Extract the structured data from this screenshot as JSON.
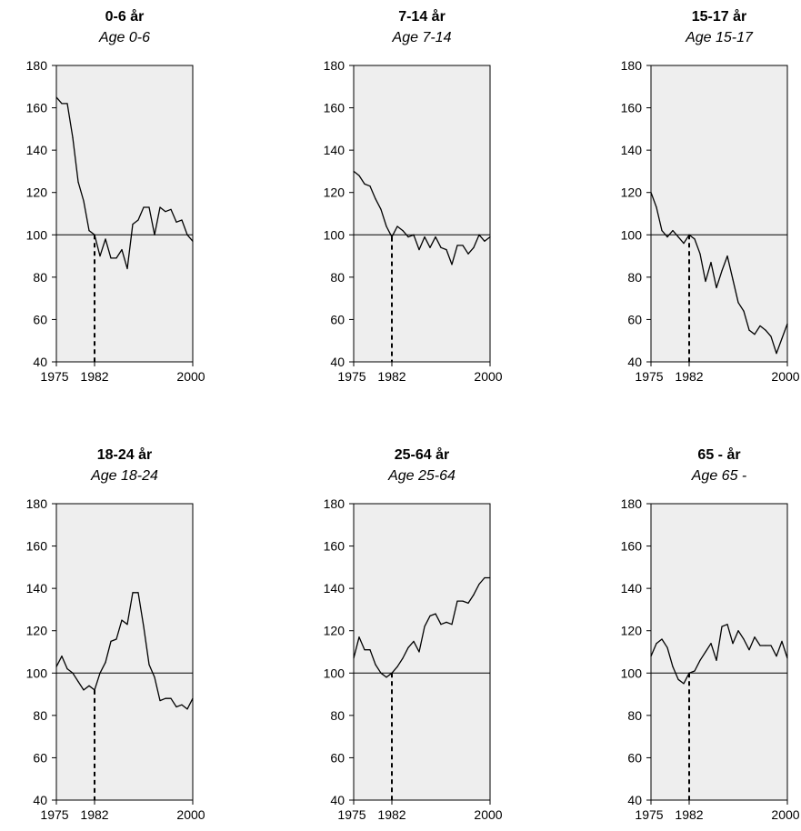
{
  "chart_data": [
    {
      "type": "line",
      "title": "0-6 år",
      "subtitle": "Age 0-6",
      "xlim": [
        1975,
        2000
      ],
      "ylim": [
        40,
        180
      ],
      "xticks": [
        1975,
        1982,
        2000
      ],
      "yticks": [
        40,
        60,
        80,
        100,
        120,
        140,
        160,
        180
      ],
      "reference_line_y": 100,
      "marker_x": 1982,
      "x": [
        1975,
        1976,
        1977,
        1978,
        1979,
        1980,
        1981,
        1982,
        1983,
        1984,
        1985,
        1986,
        1987,
        1988,
        1989,
        1990,
        1991,
        1992,
        1993,
        1994,
        1995,
        1996,
        1997,
        1998,
        1999,
        2000
      ],
      "values": [
        165,
        162,
        162,
        146,
        125,
        116,
        102,
        100,
        90,
        98,
        89,
        89,
        93,
        84,
        105,
        107,
        113,
        113,
        100,
        113,
        111,
        112,
        106,
        107,
        100,
        97
      ]
    },
    {
      "type": "line",
      "title": "7-14 år",
      "subtitle": "Age 7-14",
      "xlim": [
        1975,
        2000
      ],
      "ylim": [
        40,
        180
      ],
      "xticks": [
        1975,
        1982,
        2000
      ],
      "yticks": [
        40,
        60,
        80,
        100,
        120,
        140,
        160,
        180
      ],
      "reference_line_y": 100,
      "marker_x": 1982,
      "x": [
        1975,
        1976,
        1977,
        1978,
        1979,
        1980,
        1981,
        1982,
        1983,
        1984,
        1985,
        1986,
        1987,
        1988,
        1989,
        1990,
        1991,
        1992,
        1993,
        1994,
        1995,
        1996,
        1997,
        1998,
        1999,
        2000
      ],
      "values": [
        130,
        128,
        124,
        123,
        117,
        112,
        104,
        99,
        104,
        102,
        99,
        100,
        93,
        99,
        94,
        99,
        94,
        93,
        86,
        95,
        95,
        91,
        94,
        100,
        97,
        99
      ]
    },
    {
      "type": "line",
      "title": "15-17 år",
      "subtitle": "Age 15-17",
      "xlim": [
        1975,
        2000
      ],
      "ylim": [
        40,
        180
      ],
      "xticks": [
        1975,
        1982,
        2000
      ],
      "yticks": [
        40,
        60,
        80,
        100,
        120,
        140,
        160,
        180
      ],
      "reference_line_y": 100,
      "marker_x": 1982,
      "x": [
        1975,
        1976,
        1977,
        1978,
        1979,
        1980,
        1981,
        1982,
        1983,
        1984,
        1985,
        1986,
        1987,
        1988,
        1989,
        1990,
        1991,
        1992,
        1993,
        1994,
        1995,
        1996,
        1997,
        1998,
        1999,
        2000
      ],
      "values": [
        120,
        113,
        102,
        99,
        102,
        99,
        96,
        100,
        98,
        91,
        78,
        87,
        75,
        83,
        90,
        79,
        68,
        64,
        55,
        53,
        57,
        55,
        52,
        44,
        51,
        58
      ]
    },
    {
      "type": "line",
      "title": "18-24 år",
      "subtitle": "Age 18-24",
      "xlim": [
        1975,
        2000
      ],
      "ylim": [
        40,
        180
      ],
      "xticks": [
        1975,
        1982,
        2000
      ],
      "yticks": [
        40,
        60,
        80,
        100,
        120,
        140,
        160,
        180
      ],
      "reference_line_y": 100,
      "marker_x": 1982,
      "x": [
        1975,
        1976,
        1977,
        1978,
        1979,
        1980,
        1981,
        1982,
        1983,
        1984,
        1985,
        1986,
        1987,
        1988,
        1989,
        1990,
        1991,
        1992,
        1993,
        1994,
        1995,
        1996,
        1997,
        1998,
        1999,
        2000
      ],
      "values": [
        103,
        108,
        102,
        100,
        96,
        92,
        94,
        92,
        100,
        105,
        115,
        116,
        125,
        123,
        138,
        138,
        122,
        104,
        98,
        87,
        88,
        88,
        84,
        85,
        83,
        88
      ]
    },
    {
      "type": "line",
      "title": "25-64 år",
      "subtitle": "Age 25-64",
      "xlim": [
        1975,
        2000
      ],
      "ylim": [
        40,
        180
      ],
      "xticks": [
        1975,
        1982,
        2000
      ],
      "yticks": [
        40,
        60,
        80,
        100,
        120,
        140,
        160,
        180
      ],
      "reference_line_y": 100,
      "marker_x": 1982,
      "x": [
        1975,
        1976,
        1977,
        1978,
        1979,
        1980,
        1981,
        1982,
        1983,
        1984,
        1985,
        1986,
        1987,
        1988,
        1989,
        1990,
        1991,
        1992,
        1993,
        1994,
        1995,
        1996,
        1997,
        1998,
        1999,
        2000
      ],
      "values": [
        107,
        117,
        111,
        111,
        104,
        100,
        98,
        100,
        103,
        107,
        112,
        115,
        110,
        122,
        127,
        128,
        123,
        124,
        123,
        134,
        134,
        133,
        137,
        142,
        145,
        145
      ]
    },
    {
      "type": "line",
      "title": "65 - år",
      "subtitle": "Age 65 -",
      "xlim": [
        1975,
        2000
      ],
      "ylim": [
        40,
        180
      ],
      "xticks": [
        1975,
        1982,
        2000
      ],
      "yticks": [
        40,
        60,
        80,
        100,
        120,
        140,
        160,
        180
      ],
      "reference_line_y": 100,
      "marker_x": 1982,
      "x": [
        1975,
        1976,
        1977,
        1978,
        1979,
        1980,
        1981,
        1982,
        1983,
        1984,
        1985,
        1986,
        1987,
        1988,
        1989,
        1990,
        1991,
        1992,
        1993,
        1994,
        1995,
        1996,
        1997,
        1998,
        1999,
        2000
      ],
      "values": [
        108,
        114,
        116,
        112,
        103,
        97,
        95,
        100,
        101,
        106,
        110,
        114,
        106,
        122,
        123,
        114,
        120,
        116,
        111,
        117,
        113,
        113,
        113,
        108,
        115,
        107
      ]
    }
  ]
}
